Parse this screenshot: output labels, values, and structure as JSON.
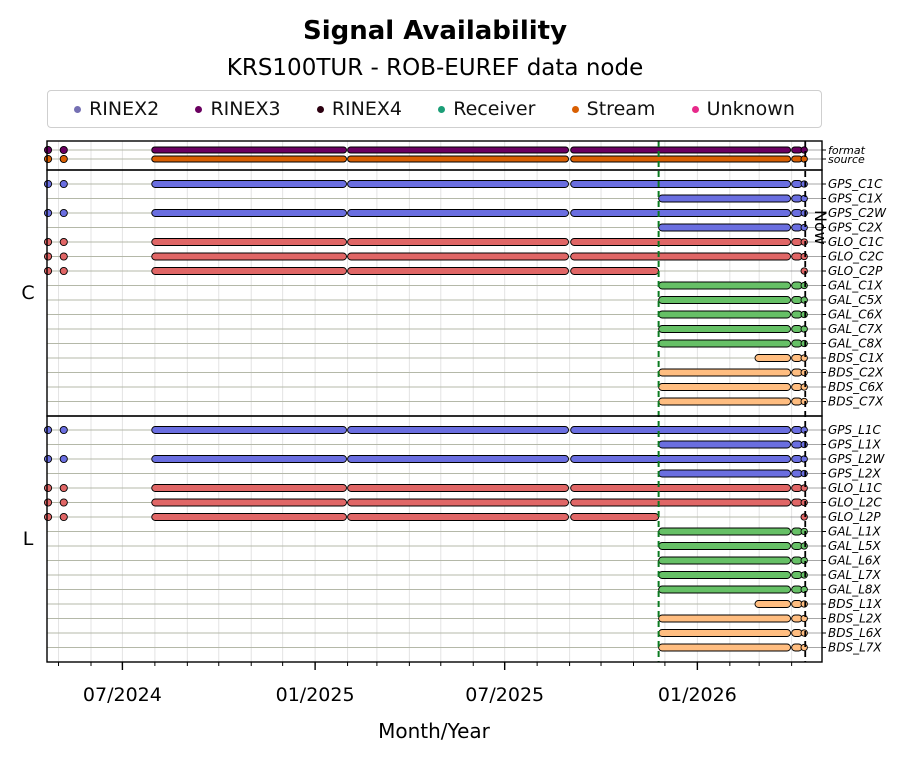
{
  "chart_data": {
    "type": "timeline",
    "title": "Signal Availability",
    "subtitle": "KRS100TUR - ROB-EUREF data node",
    "xlabel": "Month/Year",
    "x_ticks": [
      "07/2024",
      "01/2025",
      "07/2025",
      "01/2026"
    ],
    "x_range": [
      "2024-04-20",
      "2026-04-30"
    ],
    "now_marker": {
      "date": "2026-04-14",
      "label": "Now"
    },
    "receiver_change": "2025-11-25",
    "legend": [
      {
        "name": "RINEX2",
        "color": "#7570b3"
      },
      {
        "name": "RINEX3",
        "color": "#6a0060"
      },
      {
        "name": "RINEX4",
        "color": "#2b0010"
      },
      {
        "name": "Receiver",
        "color": "#1b9e77"
      },
      {
        "name": "Stream",
        "color": "#d95f02"
      },
      {
        "name": "Unknown",
        "color": "#e7298a"
      }
    ],
    "colors": {
      "GPS": "#6a6ee0",
      "GLO": "#e06666",
      "GAL": "#66c066",
      "BDS": "#ffbd80",
      "format": "#6a0060",
      "source": "#d95f02"
    },
    "panels": [
      {
        "label": "",
        "rows": [
          {
            "name": "format",
            "kind": "format"
          },
          {
            "name": "source",
            "kind": "source"
          }
        ]
      },
      {
        "label": "C",
        "rows": [
          {
            "name": "GPS_C1C",
            "kind": "old"
          },
          {
            "name": "GPS_C1X",
            "kind": "new"
          },
          {
            "name": "GPS_C2W",
            "kind": "old"
          },
          {
            "name": "GPS_C2X",
            "kind": "new"
          },
          {
            "name": "GLO_C1C",
            "kind": "old"
          },
          {
            "name": "GLO_C2C",
            "kind": "old"
          },
          {
            "name": "GLO_C2P",
            "kind": "glo_p"
          },
          {
            "name": "GAL_C1X",
            "kind": "new"
          },
          {
            "name": "GAL_C5X",
            "kind": "new"
          },
          {
            "name": "GAL_C6X",
            "kind": "new"
          },
          {
            "name": "GAL_C7X",
            "kind": "new"
          },
          {
            "name": "GAL_C8X",
            "kind": "new"
          },
          {
            "name": "BDS_C1X",
            "kind": "bds1"
          },
          {
            "name": "BDS_C2X",
            "kind": "new"
          },
          {
            "name": "BDS_C6X",
            "kind": "new"
          },
          {
            "name": "BDS_C7X",
            "kind": "new"
          }
        ]
      },
      {
        "label": "L",
        "rows": [
          {
            "name": "GPS_L1C",
            "kind": "old"
          },
          {
            "name": "GPS_L1X",
            "kind": "new"
          },
          {
            "name": "GPS_L2W",
            "kind": "old"
          },
          {
            "name": "GPS_L2X",
            "kind": "new"
          },
          {
            "name": "GLO_L1C",
            "kind": "old"
          },
          {
            "name": "GLO_L2C",
            "kind": "old"
          },
          {
            "name": "GLO_L2P",
            "kind": "glo_p"
          },
          {
            "name": "GAL_L1X",
            "kind": "new"
          },
          {
            "name": "GAL_L5X",
            "kind": "new"
          },
          {
            "name": "GAL_L6X",
            "kind": "new"
          },
          {
            "name": "GAL_L7X",
            "kind": "new"
          },
          {
            "name": "GAL_L8X",
            "kind": "new"
          },
          {
            "name": "BDS_L1X",
            "kind": "bds1"
          },
          {
            "name": "BDS_L2X",
            "kind": "new"
          },
          {
            "name": "BDS_L6X",
            "kind": "new"
          },
          {
            "name": "BDS_L7X",
            "kind": "new"
          }
        ]
      }
    ],
    "segment_patterns": {
      "old": [
        [
          "2024-04-20",
          "2024-04-22"
        ],
        [
          "2024-05-06",
          "2024-05-06"
        ],
        [
          "2024-07-29",
          "2025-01-31"
        ],
        [
          "2025-02-01",
          "2025-08-31"
        ],
        [
          "2025-09-02",
          "2026-03-31"
        ],
        [
          "2026-04-01",
          "2026-04-11"
        ]
      ],
      "format": [
        [
          "2024-04-20",
          "2024-04-22"
        ],
        [
          "2024-05-06",
          "2024-05-06"
        ],
        [
          "2024-07-29",
          "2025-01-31"
        ],
        [
          "2025-02-01",
          "2025-08-31"
        ],
        [
          "2025-09-02",
          "2026-03-31"
        ],
        [
          "2026-04-01",
          "2026-04-11"
        ]
      ],
      "source": [
        [
          "2024-04-20",
          "2024-04-22"
        ],
        [
          "2024-05-06",
          "2024-05-06"
        ],
        [
          "2024-07-29",
          "2025-01-31"
        ],
        [
          "2025-02-01",
          "2025-08-31"
        ],
        [
          "2025-09-02",
          "2026-03-31"
        ],
        [
          "2026-04-01",
          "2026-04-11"
        ]
      ],
      "glo_p": [
        [
          "2024-04-20",
          "2024-04-22"
        ],
        [
          "2024-05-06",
          "2024-05-06"
        ],
        [
          "2024-07-29",
          "2025-01-31"
        ],
        [
          "2025-02-01",
          "2025-08-31"
        ],
        [
          "2025-09-02",
          "2025-11-25"
        ]
      ],
      "new": [
        [
          "2025-11-25",
          "2026-03-31"
        ],
        [
          "2026-04-01",
          "2026-04-11"
        ]
      ],
      "bds1": [
        [
          "2026-02-25",
          "2026-03-31"
        ],
        [
          "2026-04-01",
          "2026-04-11"
        ]
      ]
    }
  }
}
